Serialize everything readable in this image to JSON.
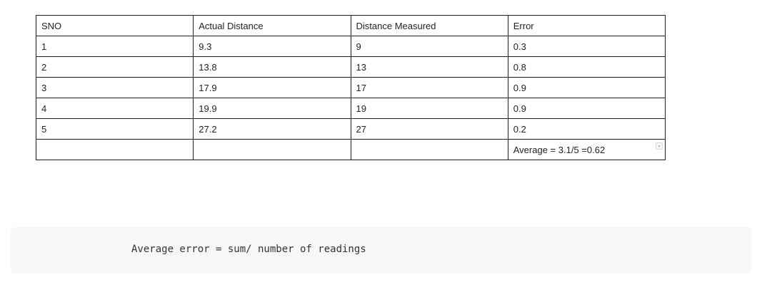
{
  "table": {
    "headers": [
      "SNO",
      "Actual Distance",
      "Distance Measured",
      "Error"
    ],
    "rows": [
      [
        "1",
        "9.3",
        "9",
        "0.3"
      ],
      [
        "2",
        "13.8",
        "13",
        "0.8"
      ],
      [
        "3",
        "17.9",
        "17",
        "0.9"
      ],
      [
        "4",
        "19.9",
        "19",
        "0.9"
      ],
      [
        "5",
        "27.2",
        "27",
        "0.2"
      ]
    ],
    "footer": [
      "",
      "",
      "",
      "Average = 3.1/5 =0.62"
    ]
  },
  "code": {
    "line": "Average error = sum/ number of readings"
  }
}
